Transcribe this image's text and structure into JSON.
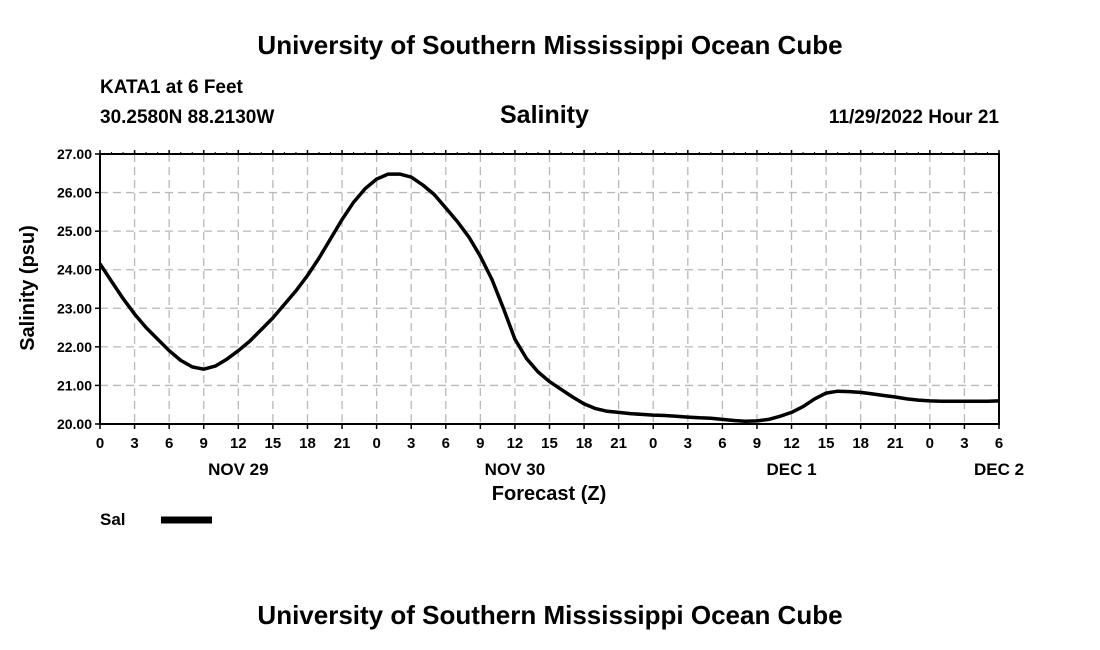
{
  "header": {
    "title_top": "University of Southern Mississippi Ocean Cube",
    "station": "KATA1 at 6 Feet",
    "coords": "30.2580N  88.2130W",
    "datetime": "11/29/2022 Hour 21",
    "title_bottom": "University of Southern Mississippi Ocean Cube"
  },
  "chart_data": {
    "type": "line",
    "title": "Salinity",
    "xlabel": "Forecast (Z)",
    "ylabel": "Salinity (psu)",
    "ylim": [
      20.0,
      27.0
    ],
    "y_ticks": [
      "20.00",
      "21.00",
      "22.00",
      "23.00",
      "24.00",
      "25.00",
      "26.00",
      "27.00"
    ],
    "xlim_hours": [
      0,
      78
    ],
    "x_tick_labels": [
      "0",
      "3",
      "6",
      "9",
      "12",
      "15",
      "18",
      "21",
      "0",
      "3",
      "6",
      "9",
      "12",
      "15",
      "18",
      "21",
      "0",
      "3",
      "6",
      "9",
      "12",
      "15",
      "18",
      "21",
      "0",
      "3",
      "6"
    ],
    "day_labels": [
      {
        "label": "NOV 29",
        "hour": 12
      },
      {
        "label": "NOV 30",
        "hour": 36
      },
      {
        "label": "DEC 1",
        "hour": 60
      },
      {
        "label": "DEC 2",
        "hour": 78
      }
    ],
    "grid": true,
    "series": [
      {
        "name": "Sal",
        "color": "#000000",
        "x": [
          0,
          1,
          2,
          3,
          4,
          5,
          6,
          7,
          8,
          9,
          10,
          11,
          12,
          13,
          14,
          15,
          16,
          17,
          18,
          19,
          20,
          21,
          22,
          23,
          24,
          25,
          26,
          27,
          28,
          29,
          30,
          31,
          32,
          33,
          34,
          35,
          36,
          37,
          38,
          39,
          40,
          41,
          42,
          43,
          44,
          45,
          46,
          47,
          48,
          49,
          50,
          51,
          52,
          53,
          54,
          55,
          56,
          57,
          58,
          59,
          60,
          61,
          62,
          63,
          64,
          65,
          66,
          67,
          68,
          69,
          70,
          71,
          72,
          73,
          74,
          75,
          76,
          77,
          78
        ],
        "values": [
          24.15,
          23.7,
          23.25,
          22.85,
          22.5,
          22.2,
          21.9,
          21.65,
          21.48,
          21.42,
          21.5,
          21.68,
          21.9,
          22.15,
          22.45,
          22.75,
          23.1,
          23.45,
          23.85,
          24.3,
          24.8,
          25.3,
          25.75,
          26.1,
          26.35,
          26.48,
          26.48,
          26.4,
          26.2,
          25.95,
          25.6,
          25.25,
          24.85,
          24.35,
          23.75,
          23.0,
          22.2,
          21.7,
          21.35,
          21.1,
          20.9,
          20.7,
          20.52,
          20.4,
          20.33,
          20.3,
          20.27,
          20.25,
          20.23,
          20.22,
          20.2,
          20.18,
          20.16,
          20.15,
          20.12,
          20.09,
          20.07,
          20.08,
          20.12,
          20.2,
          20.3,
          20.45,
          20.65,
          20.8,
          20.85,
          20.84,
          20.82,
          20.78,
          20.74,
          20.7,
          20.65,
          20.62,
          20.6,
          20.59,
          20.59,
          20.59,
          20.59,
          20.59,
          20.6
        ]
      }
    ],
    "legend": {
      "label": "Sal",
      "placement": "bottom-left"
    }
  }
}
